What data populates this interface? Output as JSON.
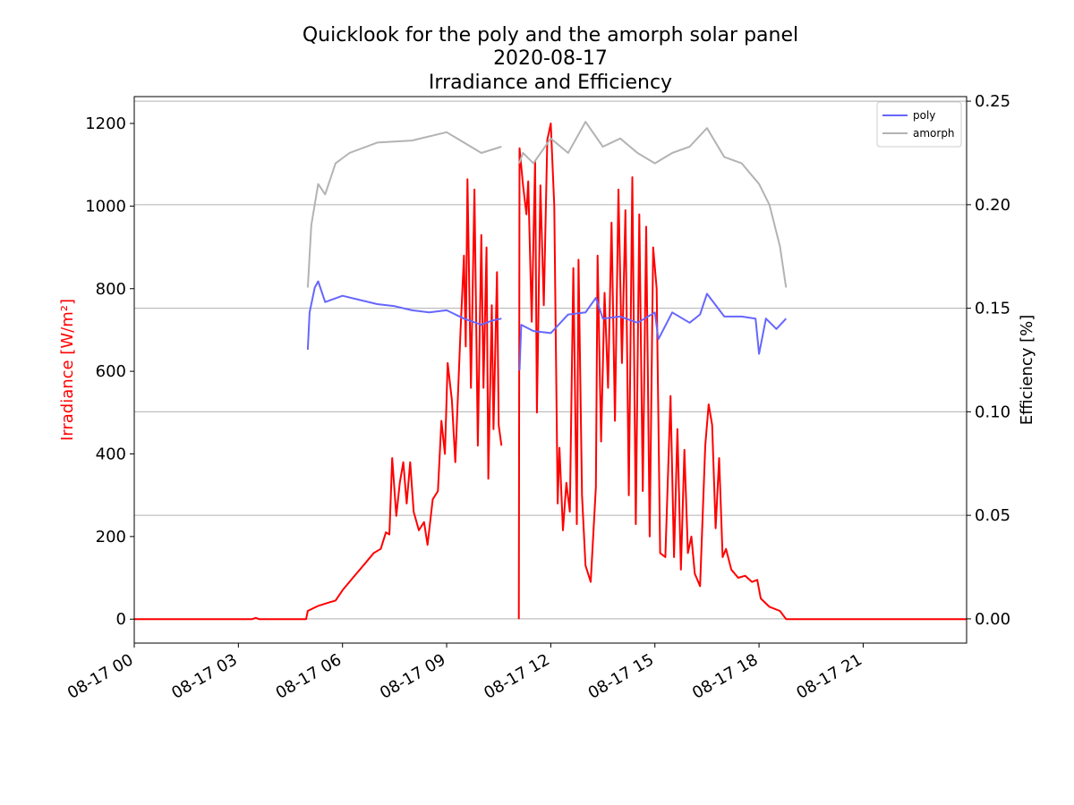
{
  "chart_data": {
    "type": "line",
    "title": [
      "Quicklook for the poly and the amorph solar panel",
      "2020-08-17",
      "Irradiance and Efficiency"
    ],
    "ylabel": "Irradiance [W/m²]",
    "ylabel_color": "#ff0000",
    "y2label": "Efficiency [%]",
    "xlim": [
      0,
      23.98
    ],
    "ylim": [
      -58,
      1265
    ],
    "y2lim": [
      -0.0117,
      0.2522
    ],
    "xticks": [
      {
        "value": 0,
        "label": "08-17 00"
      },
      {
        "value": 3,
        "label": "08-17 03"
      },
      {
        "value": 6,
        "label": "08-17 06"
      },
      {
        "value": 9,
        "label": "08-17 09"
      },
      {
        "value": 12,
        "label": "08-17 12"
      },
      {
        "value": 15,
        "label": "08-17 15"
      },
      {
        "value": 18,
        "label": "08-17 18"
      },
      {
        "value": 21,
        "label": "08-17 21"
      }
    ],
    "yticks": [
      0,
      200,
      400,
      600,
      800,
      1000,
      1200
    ],
    "y2ticks": [
      {
        "value": 0,
        "label": "0.00"
      },
      {
        "value": 0.05,
        "label": "0.05"
      },
      {
        "value": 0.1,
        "label": "0.10"
      },
      {
        "value": 0.15,
        "label": "0.15"
      },
      {
        "value": 0.2,
        "label": "0.20"
      },
      {
        "value": 0.25,
        "label": "0.25"
      }
    ],
    "grid": "y2",
    "legend": "upper right",
    "series": [
      {
        "color": "#ff0000",
        "axis": "y",
        "x": [
          0,
          3.4,
          3.5,
          3.6,
          4.95,
          5.0,
          5.3,
          5.6,
          5.8,
          6.0,
          6.3,
          6.6,
          6.9,
          7.1,
          7.25,
          7.35,
          7.43,
          7.55,
          7.65,
          7.75,
          7.85,
          7.95,
          8.05,
          8.2,
          8.35,
          8.45,
          8.6,
          8.75,
          8.85,
          8.95,
          9.03,
          9.15,
          9.25,
          9.4,
          9.5,
          9.55,
          9.6,
          9.7,
          9.8,
          9.9,
          10.0,
          10.06,
          10.15,
          10.2,
          10.3,
          10.35,
          10.45,
          10.5,
          10.58,
          10.8,
          11.08,
          11.1,
          11.2,
          11.3,
          11.35,
          11.45,
          11.55,
          11.6,
          11.7,
          11.8,
          11.9,
          12.0,
          12.1,
          12.2,
          12.25,
          12.35,
          12.45,
          12.55,
          12.65,
          12.75,
          12.8,
          12.9,
          13.0,
          13.15,
          13.3,
          13.35,
          13.45,
          13.55,
          13.65,
          13.75,
          13.85,
          13.95,
          14.05,
          14.15,
          14.25,
          14.35,
          14.45,
          14.55,
          14.65,
          14.75,
          14.85,
          14.95,
          15.05,
          15.15,
          15.3,
          15.45,
          15.55,
          15.65,
          15.75,
          15.85,
          15.95,
          16.05,
          16.15,
          16.3,
          16.45,
          16.55,
          16.65,
          16.75,
          16.85,
          16.95,
          17.05,
          17.2,
          17.4,
          17.6,
          17.8,
          17.95,
          18.05,
          18.3,
          18.6,
          18.78,
          23.98
        ],
        "values": [
          0,
          0,
          3,
          0,
          0,
          20,
          32,
          40,
          45,
          70,
          100,
          130,
          160,
          170,
          210,
          205,
          390,
          250,
          330,
          380,
          280,
          380,
          260,
          215,
          235,
          180,
          290,
          310,
          480,
          400,
          620,
          530,
          380,
          700,
          880,
          660,
          1065,
          560,
          1040,
          420,
          930,
          560,
          900,
          340,
          760,
          460,
          840,
          470,
          420,
          null,
          0,
          1140,
          1050,
          980,
          1060,
          720,
          1110,
          500,
          1050,
          760,
          1160,
          1200,
          1000,
          280,
          415,
          215,
          330,
          260,
          850,
          230,
          870,
          300,
          130,
          90,
          320,
          880,
          430,
          790,
          560,
          960,
          480,
          1040,
          620,
          990,
          300,
          1070,
          230,
          980,
          310,
          950,
          200,
          900,
          800,
          160,
          150,
          540,
          150,
          460,
          120,
          410,
          160,
          200,
          110,
          80,
          420,
          520,
          470,
          220,
          390,
          150,
          170,
          120,
          100,
          105,
          90,
          95,
          50,
          30,
          20,
          0,
          0
        ]
      },
      {
        "name": "poly",
        "color": "#6666ff",
        "axis": "y2",
        "x": [
          5.0,
          5.05,
          5.2,
          5.3,
          5.5,
          6.0,
          6.5,
          7.0,
          7.5,
          8.0,
          8.5,
          9.0,
          9.5,
          10.0,
          10.3,
          10.58,
          10.8,
          11.1,
          11.15,
          11.5,
          12.0,
          12.5,
          13.0,
          13.3,
          13.5,
          14.0,
          14.5,
          15.0,
          15.1,
          15.5,
          16.0,
          16.3,
          16.5,
          17.0,
          17.5,
          17.9,
          18.0,
          18.2,
          18.5,
          18.78
        ],
        "values": [
          0.13,
          0.148,
          0.16,
          0.163,
          0.153,
          0.156,
          0.154,
          0.152,
          0.151,
          0.149,
          0.148,
          0.149,
          0.145,
          0.142,
          0.144,
          0.145,
          null,
          0.12,
          0.142,
          0.139,
          0.138,
          0.147,
          0.148,
          0.155,
          0.145,
          0.146,
          0.143,
          0.148,
          0.135,
          0.148,
          0.143,
          0.147,
          0.157,
          0.146,
          0.146,
          0.145,
          0.128,
          0.145,
          0.14,
          0.145
        ]
      },
      {
        "name": "amorph",
        "color": "#b3b3b3",
        "axis": "y2",
        "x": [
          5.0,
          5.1,
          5.3,
          5.5,
          5.8,
          6.2,
          7.0,
          8.0,
          9.0,
          9.5,
          10.0,
          10.58,
          10.8,
          11.09,
          11.2,
          11.5,
          12.0,
          12.5,
          13.0,
          13.5,
          14.0,
          14.5,
          15.0,
          15.5,
          16.0,
          16.5,
          17.0,
          17.5,
          18.0,
          18.3,
          18.6,
          18.78
        ],
        "values": [
          0.16,
          0.19,
          0.21,
          0.205,
          0.22,
          0.225,
          0.23,
          0.231,
          0.235,
          0.23,
          0.225,
          0.228,
          null,
          0.22,
          0.225,
          0.22,
          0.232,
          0.225,
          0.24,
          0.228,
          0.232,
          0.225,
          0.22,
          0.225,
          0.228,
          0.237,
          0.223,
          0.22,
          0.21,
          0.2,
          0.18,
          0.16
        ]
      }
    ]
  }
}
